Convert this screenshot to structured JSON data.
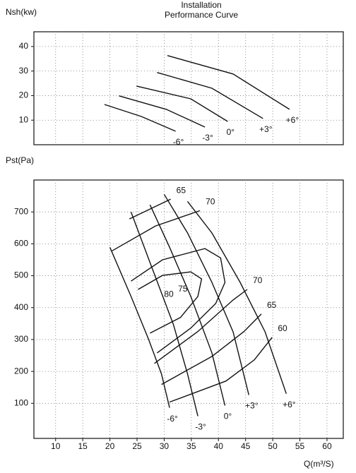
{
  "chart_data": [
    {
      "type": "line",
      "title": "Installation",
      "subtitle": "Performance Curve",
      "y_label": "Nsh(kw)",
      "xlim": [
        6,
        63
      ],
      "ylim": [
        0,
        46
      ],
      "yticks": [
        10,
        20,
        30,
        40
      ],
      "grid": true,
      "color": "#111111",
      "series": [
        {
          "name": "-6°",
          "x": [
            19,
            25.8,
            32.1
          ],
          "values": [
            16.4,
            11.5,
            5.5
          ]
        },
        {
          "name": "-3°",
          "x": [
            21.7,
            30.4,
            37.5
          ],
          "values": [
            19.9,
            14.4,
            7.2
          ]
        },
        {
          "name": "0°",
          "x": [
            24.9,
            34.9,
            41.7
          ],
          "values": [
            23.9,
            18.7,
            9.5
          ]
        },
        {
          "name": "+3°",
          "x": [
            28.7,
            38.8,
            48.2
          ],
          "values": [
            29.4,
            23,
            10.7
          ]
        },
        {
          "name": "+6°",
          "x": [
            30.6,
            42.7,
            53.1
          ],
          "values": [
            36.3,
            28.8,
            14.4
          ]
        }
      ]
    },
    {
      "type": "line",
      "y_label": "Pst(Pa)",
      "x_label": "Q(m³/S)",
      "xlim": [
        6,
        63
      ],
      "ylim": [
        -10,
        800
      ],
      "xticks": [
        10,
        15,
        20,
        25,
        30,
        35,
        40,
        45,
        50,
        55,
        60
      ],
      "yticks": [
        100,
        200,
        300,
        400,
        500,
        600,
        700
      ],
      "grid": true,
      "color": "#111111",
      "series": [
        {
          "name": "-6°",
          "x": [
            20,
            23.9,
            27.1,
            29.5,
            31
          ],
          "values": [
            589,
            435,
            302,
            192,
            86
          ]
        },
        {
          "name": "-3°",
          "x": [
            23.9,
            27.8,
            31.7,
            34.3,
            36.2
          ],
          "values": [
            700,
            523,
            347,
            192,
            60
          ]
        },
        {
          "name": "0°",
          "x": [
            27.4,
            31,
            34.9,
            38.8,
            41.2
          ],
          "values": [
            722,
            589,
            435,
            258,
            93
          ]
        },
        {
          "name": "+3°",
          "x": [
            30,
            34.3,
            38.8,
            42.7,
            45.6
          ],
          "values": [
            755,
            634,
            479,
            324,
            126
          ]
        },
        {
          "name": "+6°",
          "x": [
            34.3,
            38.8,
            44,
            48.6,
            52.5
          ],
          "values": [
            733,
            634,
            479,
            324,
            130
          ]
        },
        {
          "name": "65",
          "x": [
            23.6,
            31.2
          ],
          "values": [
            678,
            740
          ]
        },
        {
          "name": "70",
          "x": [
            20.4,
            28.4,
            36.6
          ],
          "values": [
            578,
            656,
            704
          ]
        },
        {
          "name": "75",
          "x": [
            23.9,
            29.7,
            37.5,
            40.4,
            41.2,
            39.5,
            34.9,
            28.7
          ],
          "values": [
            483,
            550,
            585,
            556,
            479,
            413,
            336,
            258
          ]
        },
        {
          "name": "80",
          "x": [
            25.2,
            29.7,
            34.9,
            36.9,
            36.2,
            33,
            27.4
          ],
          "values": [
            457,
            501,
            512,
            490,
            435,
            369,
            320
          ]
        },
        {
          "name": "70",
          "x": [
            28.2,
            36.2,
            42.7,
            45.3
          ],
          "values": [
            225,
            325,
            424,
            457
          ]
        },
        {
          "name": "65",
          "x": [
            29.5,
            38.8,
            44.7,
            47.9
          ],
          "values": [
            159,
            247,
            325,
            380
          ]
        },
        {
          "name": "60",
          "x": [
            31,
            41.4,
            46.6,
            49.9
          ],
          "values": [
            104,
            170,
            236,
            307
          ]
        }
      ]
    }
  ]
}
